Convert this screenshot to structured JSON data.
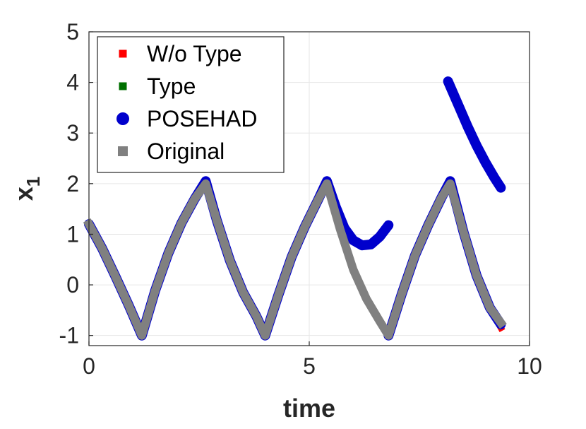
{
  "chart_data": {
    "type": "line",
    "title": "",
    "xlabel": "time",
    "ylabel_main": "x",
    "ylabel_sub": "1",
    "xlim": [
      0,
      10
    ],
    "ylim": [
      -1.2,
      5
    ],
    "xticks": [
      0,
      5,
      10
    ],
    "yticks": [
      -1,
      0,
      1,
      2,
      3,
      4,
      5
    ],
    "grid": true,
    "legend_position": "top-left",
    "series": [
      {
        "name": "W/o Type",
        "color": "#ff0000",
        "marker": "square",
        "segments": [
          [
            [
              0,
              1.2
            ],
            [
              0.3,
              0.72
            ],
            [
              0.6,
              0.17
            ],
            [
              0.9,
              -0.4
            ],
            [
              1.2,
              -1.0
            ],
            [
              1.5,
              -0.12
            ],
            [
              1.8,
              0.62
            ],
            [
              2.1,
              1.22
            ],
            [
              2.4,
              1.7
            ],
            [
              2.65,
              2.0
            ],
            [
              2.9,
              1.28
            ],
            [
              3.2,
              0.48
            ],
            [
              3.5,
              -0.15
            ],
            [
              3.8,
              -0.62
            ],
            [
              4.0,
              -1.0
            ],
            [
              4.3,
              -0.2
            ],
            [
              4.6,
              0.55
            ],
            [
              4.9,
              1.15
            ],
            [
              5.2,
              1.68
            ],
            [
              5.4,
              2.0
            ],
            [
              5.7,
              1.1
            ],
            [
              6.0,
              0.3
            ],
            [
              6.3,
              -0.28
            ],
            [
              6.6,
              -0.72
            ],
            [
              6.8,
              -1.0
            ],
            [
              7.1,
              -0.18
            ],
            [
              7.4,
              0.58
            ],
            [
              7.7,
              1.18
            ],
            [
              8.0,
              1.72
            ],
            [
              8.2,
              2.0
            ],
            [
              8.5,
              1.05
            ],
            [
              8.8,
              0.18
            ],
            [
              9.1,
              -0.45
            ],
            [
              9.35,
              -0.85
            ]
          ]
        ]
      },
      {
        "name": "Type",
        "color": "#007000",
        "marker": "square",
        "segments": [
          [
            [
              0,
              1.2
            ],
            [
              0.3,
              0.72
            ],
            [
              0.6,
              0.17
            ],
            [
              0.9,
              -0.4
            ],
            [
              1.2,
              -1.0
            ],
            [
              1.5,
              -0.12
            ],
            [
              1.8,
              0.62
            ],
            [
              2.1,
              1.22
            ],
            [
              2.4,
              1.7
            ],
            [
              2.65,
              2.0
            ],
            [
              2.9,
              1.28
            ],
            [
              3.2,
              0.48
            ],
            [
              3.5,
              -0.15
            ],
            [
              3.8,
              -0.62
            ],
            [
              4.0,
              -1.0
            ],
            [
              4.3,
              -0.2
            ],
            [
              4.6,
              0.55
            ],
            [
              4.9,
              1.15
            ],
            [
              5.2,
              1.68
            ],
            [
              5.4,
              2.0
            ],
            [
              5.7,
              1.1
            ],
            [
              6.0,
              0.3
            ],
            [
              6.3,
              -0.28
            ],
            [
              6.6,
              -0.72
            ],
            [
              6.8,
              -1.0
            ],
            [
              7.1,
              -0.18
            ],
            [
              7.4,
              0.58
            ],
            [
              7.7,
              1.18
            ],
            [
              8.0,
              1.72
            ],
            [
              8.2,
              2.0
            ],
            [
              8.5,
              1.05
            ],
            [
              8.8,
              0.18
            ],
            [
              9.1,
              -0.45
            ],
            [
              9.35,
              -0.8
            ]
          ]
        ]
      },
      {
        "name": "POSEHAD",
        "color": "#0000cc",
        "marker": "circle",
        "segments": [
          [
            [
              0,
              1.2
            ],
            [
              0.3,
              0.72
            ],
            [
              0.6,
              0.17
            ],
            [
              0.9,
              -0.4
            ],
            [
              1.2,
              -1.0
            ],
            [
              1.5,
              -0.12
            ],
            [
              1.8,
              0.62
            ],
            [
              2.1,
              1.22
            ],
            [
              2.4,
              1.7
            ],
            [
              2.65,
              2.05
            ],
            [
              2.9,
              1.28
            ],
            [
              3.2,
              0.48
            ],
            [
              3.5,
              -0.15
            ],
            [
              3.8,
              -0.62
            ],
            [
              4.0,
              -1.0
            ],
            [
              4.3,
              -0.2
            ],
            [
              4.6,
              0.55
            ],
            [
              4.9,
              1.15
            ],
            [
              5.2,
              1.68
            ],
            [
              5.4,
              2.05
            ],
            [
              5.6,
              1.55
            ],
            [
              5.8,
              1.12
            ],
            [
              6.0,
              0.88
            ],
            [
              6.2,
              0.78
            ],
            [
              6.4,
              0.8
            ],
            [
              6.6,
              0.95
            ],
            [
              6.8,
              1.18
            ]
          ],
          [
            [
              6.8,
              -1.0
            ],
            [
              7.1,
              -0.18
            ],
            [
              7.4,
              0.58
            ],
            [
              7.7,
              1.18
            ],
            [
              8.0,
              1.72
            ],
            [
              8.2,
              2.05
            ],
            [
              8.5,
              1.05
            ],
            [
              8.8,
              0.18
            ],
            [
              9.1,
              -0.45
            ],
            [
              9.35,
              -0.78
            ]
          ],
          [
            [
              8.15,
              4.02
            ],
            [
              8.4,
              3.52
            ],
            [
              8.6,
              3.12
            ],
            [
              8.8,
              2.75
            ],
            [
              9.0,
              2.42
            ],
            [
              9.2,
              2.12
            ],
            [
              9.35,
              1.92
            ]
          ]
        ]
      },
      {
        "name": "Original",
        "color": "#808080",
        "marker": "square",
        "segments": [
          [
            [
              0,
              1.2
            ],
            [
              0.3,
              0.72
            ],
            [
              0.6,
              0.17
            ],
            [
              0.9,
              -0.4
            ],
            [
              1.2,
              -1.0
            ],
            [
              1.5,
              -0.12
            ],
            [
              1.8,
              0.62
            ],
            [
              2.1,
              1.22
            ],
            [
              2.4,
              1.7
            ],
            [
              2.65,
              2.0
            ],
            [
              2.9,
              1.28
            ],
            [
              3.2,
              0.48
            ],
            [
              3.5,
              -0.15
            ],
            [
              3.8,
              -0.62
            ],
            [
              4.0,
              -1.0
            ],
            [
              4.3,
              -0.2
            ],
            [
              4.6,
              0.55
            ],
            [
              4.9,
              1.15
            ],
            [
              5.2,
              1.68
            ],
            [
              5.4,
              2.0
            ],
            [
              5.7,
              1.1
            ],
            [
              6.0,
              0.3
            ],
            [
              6.3,
              -0.28
            ],
            [
              6.6,
              -0.72
            ],
            [
              6.8,
              -1.0
            ],
            [
              7.1,
              -0.18
            ],
            [
              7.4,
              0.58
            ],
            [
              7.7,
              1.18
            ],
            [
              8.0,
              1.72
            ],
            [
              8.2,
              2.0
            ],
            [
              8.5,
              1.05
            ],
            [
              8.8,
              0.18
            ],
            [
              9.1,
              -0.45
            ],
            [
              9.35,
              -0.75
            ]
          ]
        ]
      }
    ]
  }
}
